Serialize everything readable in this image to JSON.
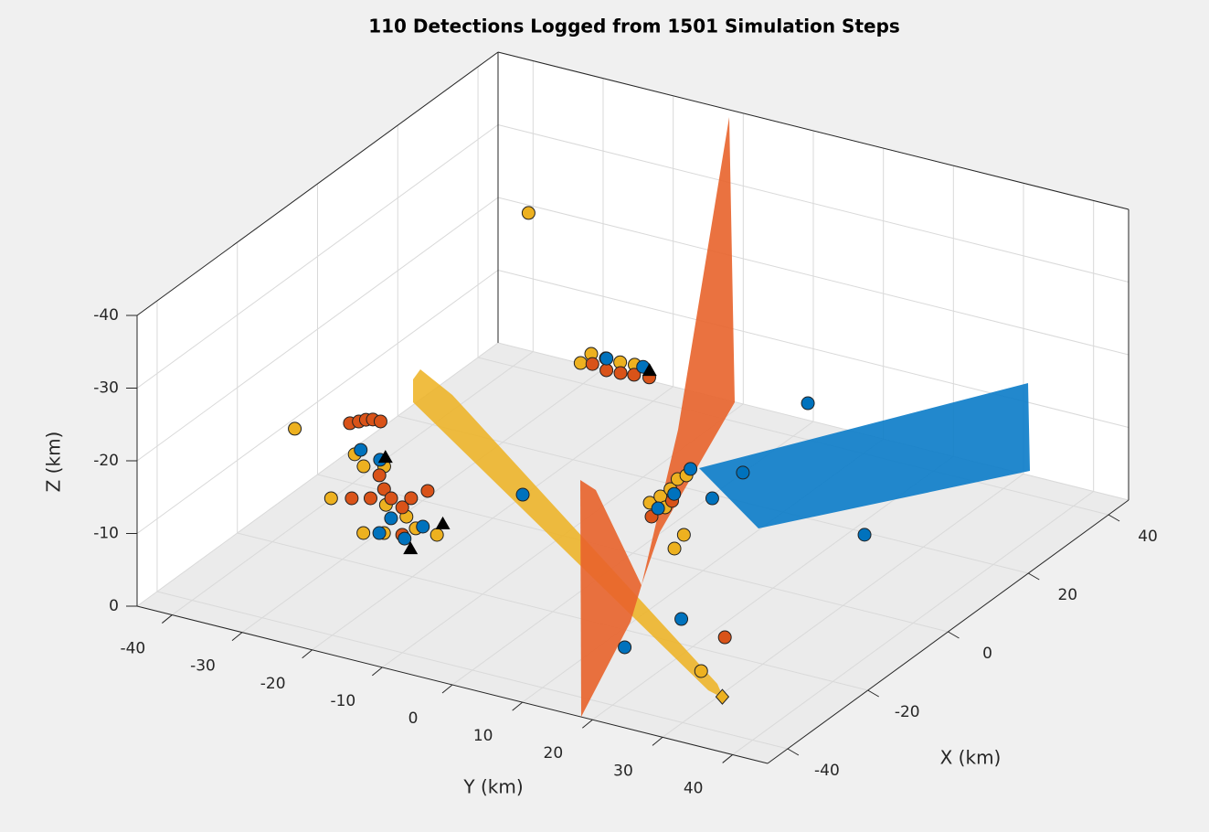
{
  "chart_data": {
    "type": "scatter3d",
    "title": "110 Detections Logged from 1501 Simulation Steps",
    "xlabel": "X (km)",
    "ylabel": "Y (km)",
    "zlabel": "Z (km)",
    "xlim": [
      -45,
      45
    ],
    "ylim": [
      -45,
      45
    ],
    "zlim": [
      -40,
      0
    ],
    "zdir": "reverse",
    "xticks": [
      -40,
      -20,
      0,
      20,
      40
    ],
    "yticks": [
      -40,
      -30,
      -20,
      -10,
      0,
      10,
      20,
      30,
      40
    ],
    "zticks": [
      0,
      -10,
      -20,
      -30,
      -40
    ],
    "grid": true,
    "series": [
      {
        "color": "#edb120",
        "marker": "circle",
        "x": [
          -8.3,
          -23.7,
          -11.0,
          -13.5,
          -12.2,
          -21.9,
          -30.5,
          -29.2,
          -26.0,
          -26.3,
          -23.6,
          30.3,
          33.3,
          33.1,
          33.0,
          33.3,
          6.5,
          8.8,
          11.3,
          14.3,
          15.8,
          6.3,
          0.5,
          -3.6,
          -33.1,
          43.0
        ],
        "y": [
          -43.5,
          -29.5,
          -33.4,
          -30.7,
          -28.5,
          -22.7,
          -21.0,
          -18.8,
          -16.1,
          -12.9,
          -18.8,
          -24.8,
          -25.0,
          -22.8,
          -20.7,
          -18.8,
          -1.3,
          -1.1,
          -1.1,
          -1.8,
          -1.4,
          1.0,
          7.0,
          8.0,
          28.7,
          -39.5
        ],
        "z": [
          -10,
          -10,
          -10,
          -10,
          -10,
          -10,
          -10,
          -10,
          -10,
          -10,
          -10,
          -8,
          -8,
          -8,
          -8,
          -8,
          -4,
          -4,
          -4,
          -4,
          -4,
          -4,
          -4,
          -4,
          -4,
          -20
        ]
      },
      {
        "color": "#d95319",
        "marker": "circle",
        "x": [
          -10.8,
          -9.8,
          -8.9,
          -8.4,
          -8.4,
          -14.8,
          -18.0,
          -19.9,
          -21.5,
          -18.6,
          -22.4,
          -21.2,
          -15.7,
          -28.5,
          30.8,
          30.1,
          30.3,
          30.7,
          31.0,
          3.1,
          8.4,
          -23.0
        ],
        "y": [
          -34.2,
          -33.5,
          -33.0,
          -32.3,
          -31.2,
          -27.7,
          -25.2,
          -23.1,
          -20.6,
          -21.0,
          -27.3,
          -25.3,
          -20.3,
          -16.6,
          -23.4,
          -21.0,
          -19.1,
          -17.4,
          -15.4,
          0.9,
          0.8,
          26.3
        ],
        "z": [
          -14,
          -14,
          -14,
          -14,
          -14,
          -10,
          -10,
          -10,
          -10,
          -10,
          -10,
          -10,
          -10,
          -10,
          -8,
          -8,
          -8,
          -8,
          -8,
          -4,
          -4,
          -4
        ]
      },
      {
        "color": "#0072bd",
        "marker": "circle",
        "x": [
          -9.5,
          -10.8,
          -25.0,
          -29.5,
          -29.3,
          -25.1,
          33.1,
          33.3,
          5.6,
          10.3,
          17.7,
          11.6,
          20.1,
          41.9,
          12.0,
          0.5,
          -21.1,
          -31.9
        ],
        "y": [
          -33.4,
          -29.9,
          -20.2,
          -19.3,
          -15.8,
          -15.6,
          -22.7,
          -17.6,
          0.4,
          0,
          -1.9,
          4.7,
          4.2,
          1.0,
          26.2,
          -16.0,
          19.0,
          17.1
        ],
        "z": [
          -10,
          -10,
          -10,
          -10,
          -10,
          -10,
          -8,
          -8,
          -4,
          -4,
          -4,
          -4,
          -4,
          -4,
          -4,
          -4,
          -4,
          -4
        ]
      },
      {
        "color": "#000000",
        "marker": "triangle",
        "x": [
          -9.8,
          -23.1,
          -31.5,
          32.8
        ],
        "y": [
          -29.7,
          -13.9,
          -13.7,
          -16.4
        ],
        "z": [
          -10,
          -10,
          -10,
          -8
        ]
      },
      {
        "color": "#edb120",
        "marker": "diamond",
        "x": [
          -38.3
        ],
        "y": [
          34.7
        ],
        "z": [
          -4
        ]
      }
    ]
  }
}
